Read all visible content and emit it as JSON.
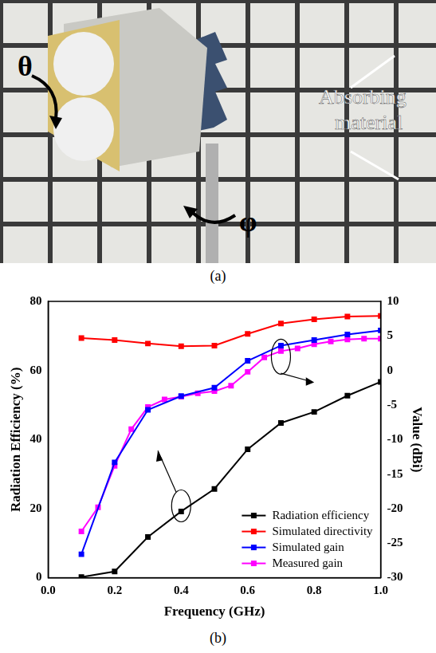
{
  "chart_data": {
    "type": "line",
    "caption": "(b)",
    "x_label": "Frequency (GHz)",
    "y_label": "Radiation Efficiency (%)",
    "y2_label": "Value (dBi)",
    "xlim": [
      0,
      1
    ],
    "xticks": [
      {
        "value": 0,
        "label": "0.0"
      },
      0.2,
      0.4,
      0.6,
      0.8,
      {
        "value": 1,
        "label": "1.0"
      }
    ],
    "ylim": [
      0,
      80
    ],
    "yticks": [
      0,
      20,
      40,
      60,
      80
    ],
    "y2lim": [
      -30,
      10
    ],
    "y2ticks": [
      -30,
      -25,
      -20,
      -15,
      -10,
      -5,
      0,
      5,
      10
    ],
    "grid": false,
    "legend": "lower right",
    "marker": "square",
    "series": [
      {
        "name": "Radiation efficiency",
        "color": "#000000",
        "axis": "y",
        "x": [
          0.1,
          0.2,
          0.3,
          0.4,
          0.5,
          0.6,
          0.7,
          0.8,
          0.9,
          1.0
        ],
        "values": [
          0.2,
          1.8,
          11.8,
          19.2,
          25.7,
          37.2,
          44.8,
          48,
          52.7,
          56.7
        ]
      },
      {
        "name": "Simulated directivity",
        "color": "#ff0000",
        "axis": "y2",
        "x": [
          0.1,
          0.2,
          0.3,
          0.4,
          0.5,
          0.6,
          0.7,
          0.8,
          0.9,
          1.0
        ],
        "values": [
          4.7,
          4.4,
          3.9,
          3.5,
          3.6,
          5.3,
          6.8,
          7.4,
          7.8,
          7.9
        ]
      },
      {
        "name": "Simulated gain",
        "color": "#0000ff",
        "axis": "y2",
        "x": [
          0.1,
          0.2,
          0.3,
          0.4,
          0.5,
          0.6,
          0.7,
          0.8,
          0.9,
          1.0
        ],
        "values": [
          -26.6,
          -13.3,
          -5.7,
          -3.7,
          -2.5,
          1.4,
          3.6,
          4.4,
          5.2,
          5.8
        ]
      },
      {
        "name": "Measured gain",
        "color": "#ff00ff",
        "axis": "y2",
        "x": [
          0.1,
          0.15,
          0.2,
          0.25,
          0.3,
          0.35,
          0.4,
          0.45,
          0.5,
          0.55,
          0.6,
          0.65,
          0.7,
          0.75,
          0.8,
          0.85,
          0.9,
          0.95,
          1.0
        ],
        "values": [
          -23.3,
          -19.8,
          -13.8,
          -8.5,
          -5.3,
          -4.2,
          -3.8,
          -3.3,
          -3.0,
          -2.2,
          -0.2,
          1.9,
          2.8,
          3.2,
          3.8,
          4.2,
          4.5,
          4.6,
          4.6
        ]
      }
    ]
  },
  "photo": {
    "caption": "(a)",
    "labels": {
      "theta": "θ",
      "phi": "φ",
      "material": "Absorbing material"
    }
  }
}
